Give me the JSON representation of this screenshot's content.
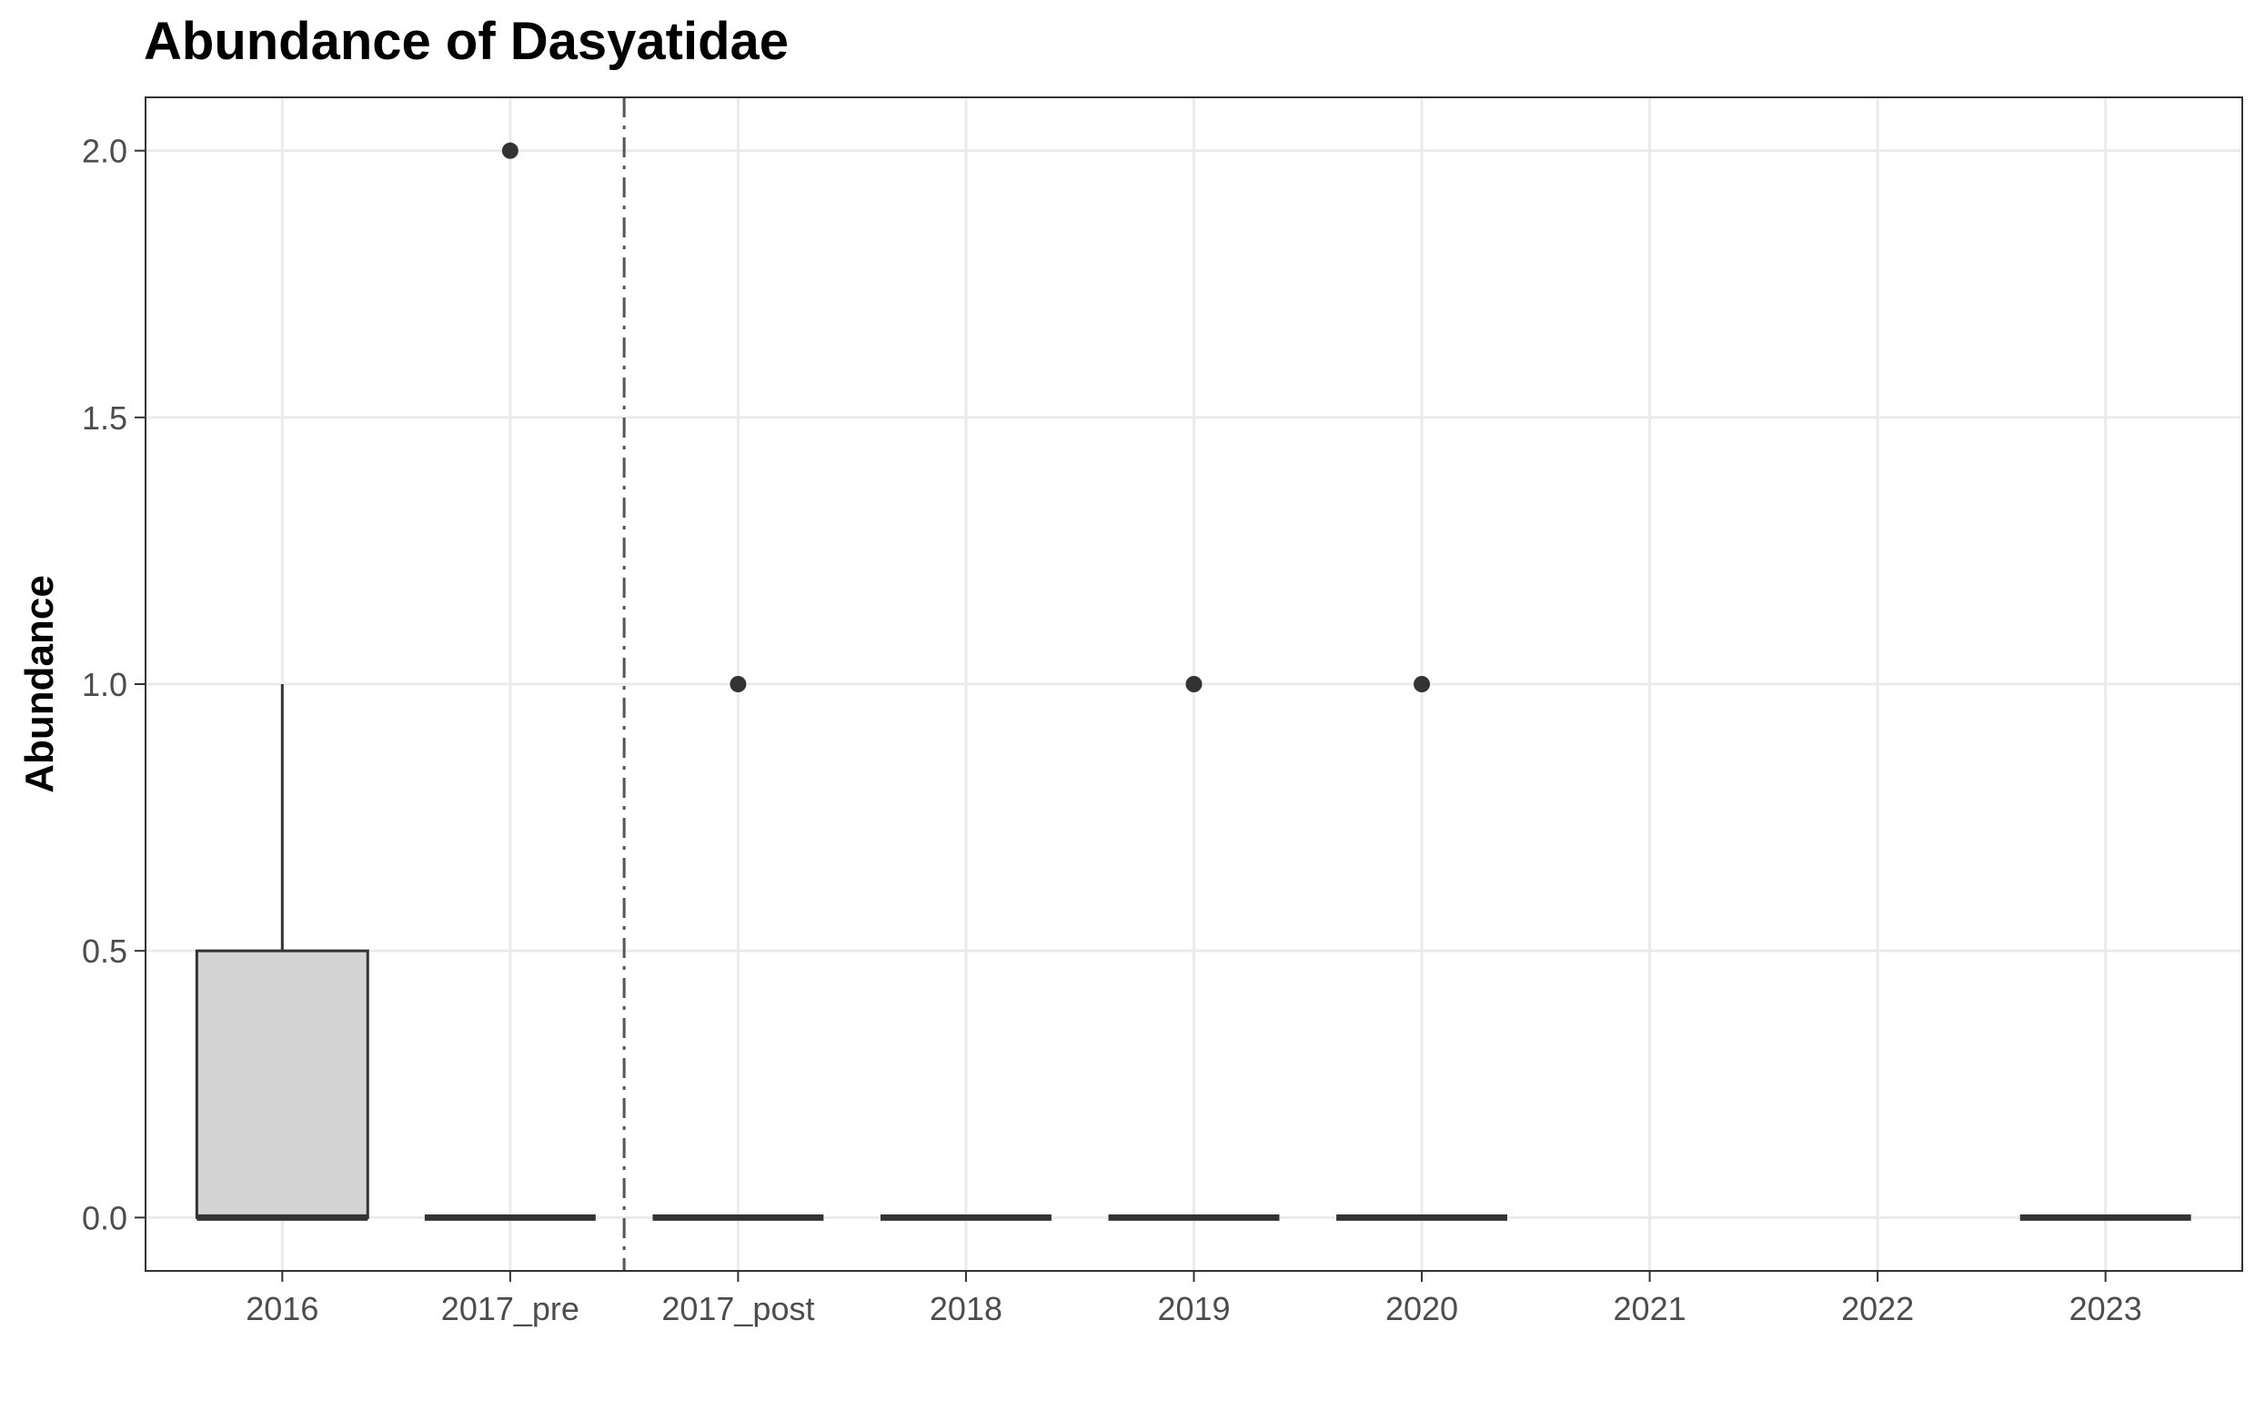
{
  "chart_data": {
    "type": "box",
    "title": "Abundance of Dasyatidae",
    "xlabel": "",
    "ylabel": "Abundance",
    "ylim": [
      -0.1,
      2.1
    ],
    "yticks": [
      0.0,
      0.5,
      1.0,
      1.5,
      2.0
    ],
    "ytick_labels": [
      "0.0",
      "0.5",
      "1.0",
      "1.5",
      "2.0"
    ],
    "categories": [
      "2016",
      "2017_pre",
      "2017_post",
      "2018",
      "2019",
      "2020",
      "2021",
      "2022",
      "2023"
    ],
    "boxes": [
      {
        "category": "2016",
        "q1": 0.0,
        "median": 0.0,
        "q3": 0.5,
        "whisker_low": 0.0,
        "whisker_high": 1.0,
        "outliers": []
      },
      {
        "category": "2017_pre",
        "q1": 0.0,
        "median": 0.0,
        "q3": 0.0,
        "whisker_low": 0.0,
        "whisker_high": 0.0,
        "outliers": [
          2.0
        ]
      },
      {
        "category": "2017_post",
        "q1": 0.0,
        "median": 0.0,
        "q3": 0.0,
        "whisker_low": 0.0,
        "whisker_high": 0.0,
        "outliers": [
          1.0
        ]
      },
      {
        "category": "2018",
        "q1": 0.0,
        "median": 0.0,
        "q3": 0.0,
        "whisker_low": 0.0,
        "whisker_high": 0.0,
        "outliers": []
      },
      {
        "category": "2019",
        "q1": 0.0,
        "median": 0.0,
        "q3": 0.0,
        "whisker_low": 0.0,
        "whisker_high": 0.0,
        "outliers": [
          1.0
        ]
      },
      {
        "category": "2020",
        "q1": 0.0,
        "median": 0.0,
        "q3": 0.0,
        "whisker_low": 0.0,
        "whisker_high": 0.0,
        "outliers": [
          1.0
        ]
      },
      {
        "category": "2023",
        "q1": 0.0,
        "median": 0.0,
        "q3": 0.0,
        "whisker_low": 0.0,
        "whisker_high": 0.0,
        "outliers": []
      }
    ],
    "reference_line": {
      "between": [
        "2017_pre",
        "2017_post"
      ],
      "style": "dashdot"
    },
    "grid": true,
    "legend": "none",
    "colors": {
      "box_fill": "#d3d3d3",
      "box_stroke": "#333333",
      "grid": "#ebebeb",
      "panel_border": "#333333",
      "ref_line": "#555555"
    }
  }
}
